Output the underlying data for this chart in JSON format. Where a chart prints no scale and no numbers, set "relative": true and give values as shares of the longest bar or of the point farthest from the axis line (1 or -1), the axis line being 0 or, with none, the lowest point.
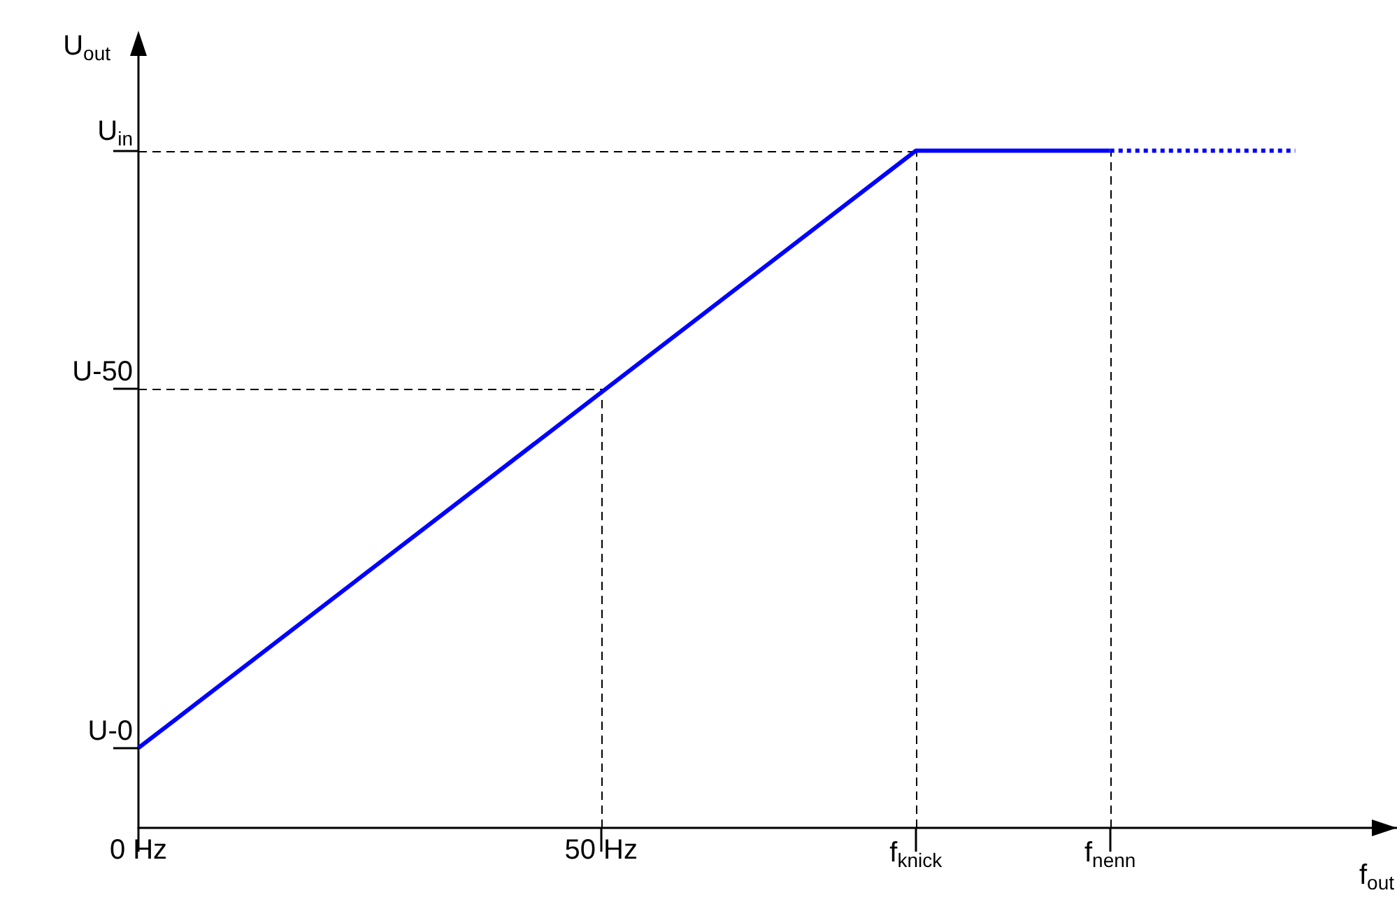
{
  "chart_data": {
    "type": "line",
    "xlabel": "f$_{out}$",
    "ylabel": "U$_{out}$",
    "relative": true,
    "marker": "none",
    "xlim": [
      0,
      136
    ],
    "xticks": [
      {
        "value": 0,
        "label": "0 Hz"
      },
      {
        "value": 50,
        "label": "50 Hz"
      },
      {
        "value": 84,
        "label": "f$_{knick}$"
      },
      {
        "value": 105,
        "label": "f$_{nenn}$"
      }
    ],
    "series": [
      {
        "x": [
          0,
          84,
          105
        ],
        "values": [
          0.118,
          1,
          1
        ],
        "color": "#0000ff",
        "line_style": "solid"
      },
      {
        "x": [
          105,
          125
        ],
        "values": [
          1,
          1
        ],
        "color": "#0000ff",
        "line_style": "dotted"
      }
    ],
    "ref_lines": [
      {
        "axis": "y",
        "value": 0.118,
        "label": "U-0"
      },
      {
        "axis": "y",
        "value": 0.648,
        "label": "U-50"
      },
      {
        "axis": "y",
        "value": 1,
        "label": "U$_{in}$"
      },
      {
        "axis": "x",
        "value": 50
      },
      {
        "axis": "x",
        "value": 84
      },
      {
        "axis": "x",
        "value": 105
      }
    ]
  }
}
